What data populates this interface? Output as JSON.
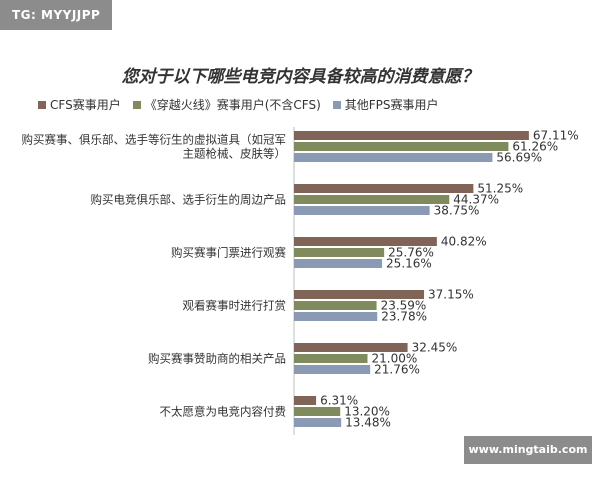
{
  "tag": "TG: MYYJJPP",
  "footer": "www.mingtaib.com",
  "colors": {
    "s1": "#806458",
    "s2": "#7f8a5d",
    "s3": "#8a9ab4",
    "bg": "#ffffff"
  },
  "chart_data": {
    "type": "bar",
    "orientation": "horizontal",
    "title": "您对于以下哪些电竞内容具备较高的消费意愿？",
    "xlim": [
      0,
      70
    ],
    "legend": "top-left",
    "grid": false,
    "categories": [
      [
        "购买赛事、俱乐部、选手等衍生的虚拟道具（如冠军",
        "主题枪械、皮肤等）"
      ],
      [
        "购买电竞俱乐部、选手衍生的周边产品"
      ],
      [
        "购买赛事门票进行观赛"
      ],
      [
        "观看赛事时进行打赏"
      ],
      [
        "购买赛事赞助商的相关产品"
      ],
      [
        "不太愿意为电竞内容付费"
      ]
    ],
    "series": [
      {
        "name": "CFS赛事用户",
        "color": "#806458",
        "values": [
          67.11,
          51.25,
          40.82,
          37.15,
          32.45,
          6.31
        ],
        "labels": [
          "67.11%",
          "51.25%",
          "40.82%",
          "37.15%",
          "32.45%",
          "6.31%"
        ]
      },
      {
        "name": "《穿越火线》赛事用户(不含CFS)",
        "color": "#7f8a5d",
        "values": [
          61.26,
          44.37,
          25.76,
          23.59,
          21.0,
          13.2
        ],
        "labels": [
          "61.26%",
          "44.37%",
          "25.76%",
          "23.59%",
          "21.00%",
          "13.20%"
        ]
      },
      {
        "name": "其他FPS赛事用户",
        "color": "#8a9ab4",
        "values": [
          56.69,
          38.75,
          25.16,
          23.78,
          21.76,
          13.48
        ],
        "labels": [
          "56.69%",
          "38.75%",
          "25.16%",
          "23.78%",
          "21.76%",
          "13.48%"
        ]
      }
    ]
  }
}
